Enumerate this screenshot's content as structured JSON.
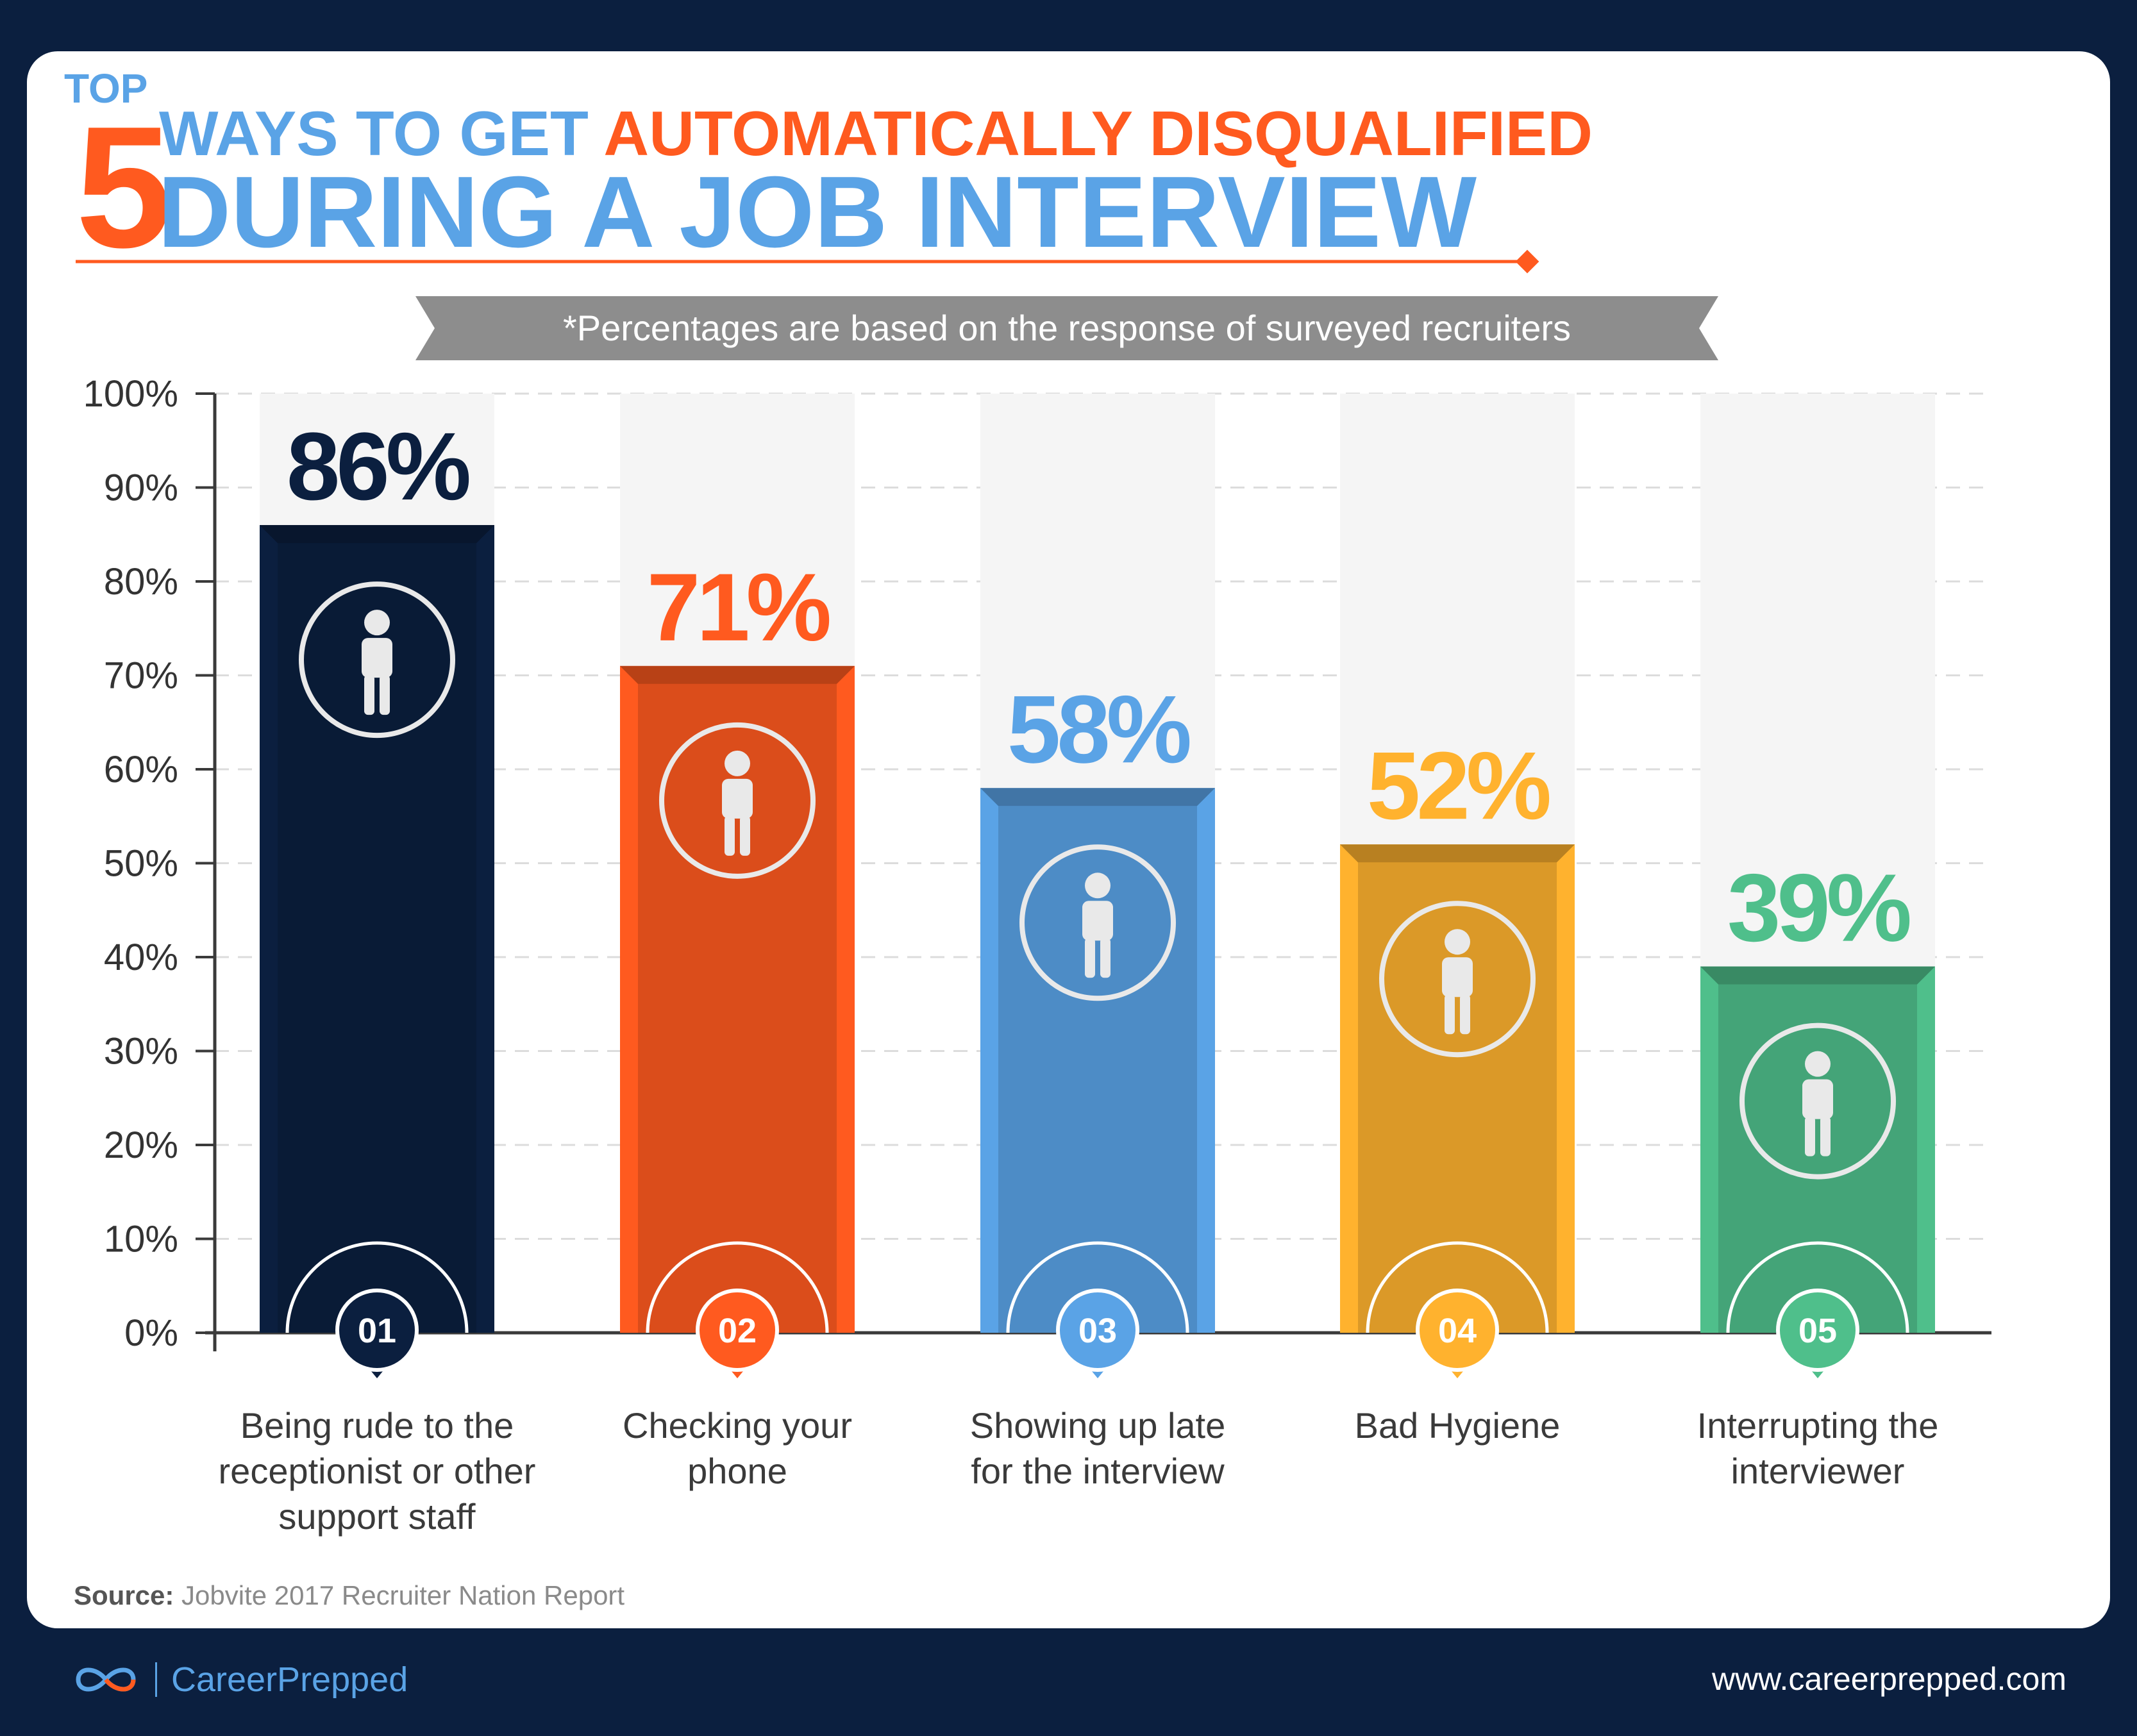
{
  "header": {
    "top_word": "TOP",
    "number": "5",
    "line1_a": "WAYS TO GET ",
    "line1_b": "AUTOMATICALLY DISQUALIFIED",
    "line2": "DURING A JOB INTERVIEW"
  },
  "note": "*Percentages are based on the response of surveyed recruiters",
  "source": {
    "label": "Source:",
    "text": "Jobvite 2017 Recruiter Nation Report"
  },
  "footer": {
    "brand": "CareerPrepped",
    "url": "www.careerprepped.com"
  },
  "colors": {
    "background": "#0b1f3f",
    "accent_orange": "#ff5a1f",
    "accent_blue": "#5aa3e6"
  },
  "chart_data": {
    "type": "bar",
    "categories": [
      "Being rude to the receptionist or other support staff",
      "Checking your phone",
      "Showing up late for the interview",
      "Bad Hygiene",
      "Interrupting the interviewer"
    ],
    "category_lines": [
      [
        "Being rude to the",
        "receptionist or other",
        "support staff"
      ],
      [
        "Checking your",
        "phone"
      ],
      [
        "Showing up late",
        "for the interview"
      ],
      [
        "Bad Hygiene"
      ],
      [
        "Interrupting the",
        "interviewer"
      ]
    ],
    "values": [
      86,
      71,
      58,
      52,
      39
    ],
    "value_labels": [
      "86%",
      "71%",
      "58%",
      "52%",
      "39%"
    ],
    "badges": [
      "01",
      "02",
      "03",
      "04",
      "05"
    ],
    "icons": [
      "angry-businessman-icon",
      "person-with-phone-icon",
      "running-late-clock-icon",
      "smelly-person-icon",
      "interview-meeting-icon"
    ],
    "bar_colors": [
      "#0b1f3f",
      "#ff5a1f",
      "#5aa3e6",
      "#ffb22e",
      "#4fbf8b"
    ],
    "yticks": [
      "0%",
      "10%",
      "20%",
      "30%",
      "40%",
      "50%",
      "60%",
      "70%",
      "80%",
      "90%",
      "100%"
    ],
    "ylim": [
      0,
      100
    ],
    "grid": true,
    "legend": "none"
  }
}
